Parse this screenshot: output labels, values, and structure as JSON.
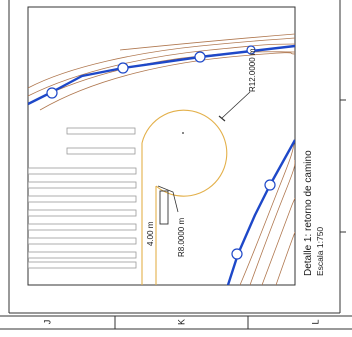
{
  "detail": {
    "title": "Detalle 1: retorno de camino",
    "scale": "Escala 1:750"
  },
  "dimensions": {
    "outer_radius": "R12.0000 m",
    "inner_radius": "R8.0000 m",
    "width": "4.00 m"
  },
  "grid_labels": {
    "bottom": [
      "J",
      "K",
      "L"
    ]
  },
  "colors": {
    "road_edge": "#e3b04a",
    "contours": "#b07850",
    "alignment": "#1e48c8",
    "frame": "#333333"
  }
}
